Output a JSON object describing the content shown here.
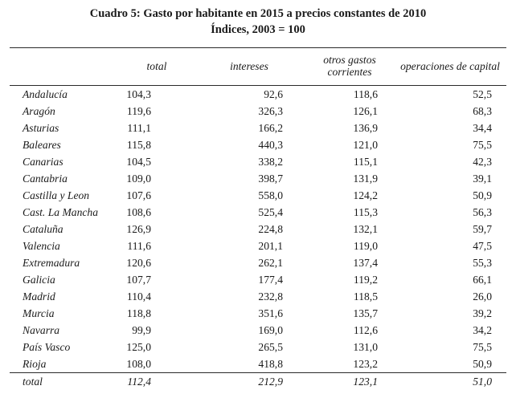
{
  "title": {
    "line1": "Cuadro 5: Gasto por habitante en 2015 a precios constantes de 2010",
    "line2": "Índices, 2003 = 100"
  },
  "colors": {
    "background": "#ffffff",
    "text": "#1a1a1a",
    "rule": "#2a2a2a"
  },
  "table": {
    "headers": [
      "total",
      "intereses",
      "otros gastos corrientes",
      "operaciones de capital"
    ],
    "rows": [
      {
        "label": "Andalucía",
        "values": [
          "104,3",
          "92,6",
          "118,6",
          "52,5"
        ]
      },
      {
        "label": "Aragón",
        "values": [
          "119,6",
          "326,3",
          "126,1",
          "68,3"
        ]
      },
      {
        "label": "Asturias",
        "values": [
          "111,1",
          "166,2",
          "136,9",
          "34,4"
        ]
      },
      {
        "label": "Baleares",
        "values": [
          "115,8",
          "440,3",
          "121,0",
          "75,5"
        ]
      },
      {
        "label": "Canarias",
        "values": [
          "104,5",
          "338,2",
          "115,1",
          "42,3"
        ]
      },
      {
        "label": "Cantabria",
        "values": [
          "109,0",
          "398,7",
          "131,9",
          "39,1"
        ]
      },
      {
        "label": "Castilla y Leon",
        "values": [
          "107,6",
          "558,0",
          "124,2",
          "50,9"
        ]
      },
      {
        "label": "Cast. La Mancha",
        "values": [
          "108,6",
          "525,4",
          "115,3",
          "56,3"
        ]
      },
      {
        "label": "Cataluña",
        "values": [
          "126,9",
          "224,8",
          "132,1",
          "59,7"
        ]
      },
      {
        "label": "Valencia",
        "values": [
          "111,6",
          "201,1",
          "119,0",
          "47,5"
        ]
      },
      {
        "label": "Extremadura",
        "values": [
          "120,6",
          "262,1",
          "137,4",
          "55,3"
        ]
      },
      {
        "label": "Galicia",
        "values": [
          "107,7",
          "177,4",
          "119,2",
          "66,1"
        ]
      },
      {
        "label": "Madrid",
        "values": [
          "110,4",
          "232,8",
          "118,5",
          "26,0"
        ]
      },
      {
        "label": "Murcia",
        "values": [
          "118,8",
          "351,6",
          "135,7",
          "39,2"
        ]
      },
      {
        "label": "Navarra",
        "values": [
          "99,9",
          "169,0",
          "112,6",
          "34,2"
        ]
      },
      {
        "label": "País Vasco",
        "values": [
          "125,0",
          "265,5",
          "131,0",
          "75,5"
        ]
      },
      {
        "label": "Rioja",
        "values": [
          "108,0",
          "418,8",
          "123,2",
          "50,9"
        ]
      },
      {
        "label": "total",
        "values": [
          "112,4",
          "212,9",
          "123,1",
          "51,0"
        ],
        "is_total": true
      }
    ]
  }
}
